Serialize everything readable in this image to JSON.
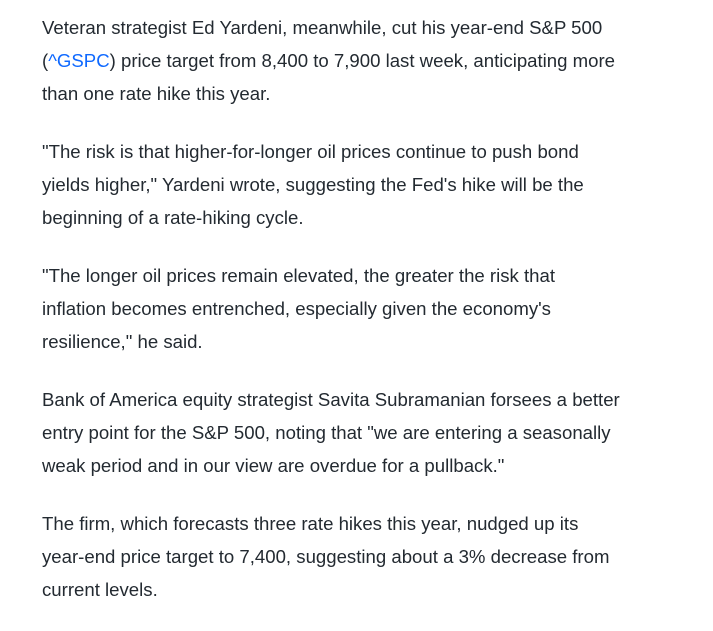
{
  "paragraphs": [
    {
      "lines": [
        "Veteran strategist Ed Yardeni, meanwhile, cut his year-end S&P 500",
        {
          "before": "(",
          "link": "^GSPC",
          "after": ") price target from 8,400 to 7,900 last week, anticipating more"
        },
        "than one rate hike this year."
      ]
    },
    {
      "lines": [
        "\"The risk is that higher-for-longer oil prices continue to push bond",
        "yields higher,\" Yardeni wrote, suggesting the Fed's hike will be the",
        "beginning of a rate-hiking cycle."
      ]
    },
    {
      "lines": [
        "\"The longer oil prices remain elevated, the greater the risk that",
        "inflation becomes entrenched, especially given the economy's",
        "resilience,\" he said."
      ]
    },
    {
      "lines": [
        "Bank of America equity strategist Savita Subramanian forsees a better",
        "entry point for the S&P 500, noting that \"we are entering a seasonally",
        "weak period and in our view are overdue for a pullback.\""
      ]
    },
    {
      "lines": [
        "The firm, which forecasts three rate hikes this year, nudged up its",
        "year-end price target to 7,400, suggesting about a 3% decrease from",
        "current levels."
      ]
    }
  ]
}
